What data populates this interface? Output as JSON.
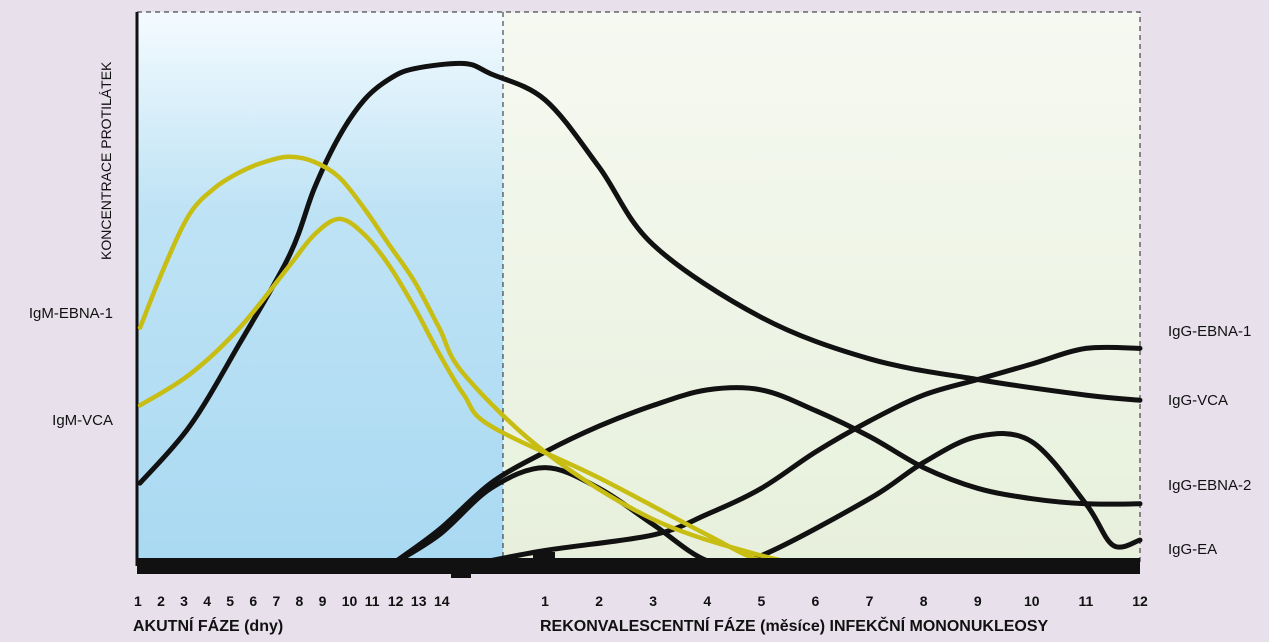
{
  "chart_data": {
    "type": "line",
    "ylabel": "KONCENTRACE PROTILÁTEK",
    "phases": [
      {
        "name": "AKUTNÍ FÁZE (dny)",
        "ticks": [
          "1",
          "2",
          "3",
          "4",
          "5",
          "6",
          "7",
          "8",
          "9",
          "10",
          "11",
          "12",
          "13",
          "14"
        ],
        "color": "#bfe3f5"
      },
      {
        "name": "REKONVALESCENTNÍ FÁZE (měsíce) INFEKČNÍ MONONUKLEOSY",
        "ticks": [
          "1",
          "2",
          "3",
          "4",
          "5",
          "6",
          "7",
          "8",
          "9",
          "10",
          "11",
          "12"
        ],
        "color": "#e7f0dc"
      }
    ],
    "grid": false,
    "series": [
      {
        "name": "IgM-EBNA-1",
        "label_side": "left",
        "color": "#c8bd12",
        "peak_day": 7,
        "points": [
          [
            1,
            0.46
          ],
          [
            2,
            0.58
          ],
          [
            3,
            0.68
          ],
          [
            4,
            0.73
          ],
          [
            5,
            0.76
          ],
          [
            6,
            0.78
          ],
          [
            7,
            0.79
          ],
          [
            8,
            0.78
          ],
          [
            9,
            0.75
          ],
          [
            10,
            0.69
          ],
          [
            11,
            0.62
          ],
          [
            12,
            0.55
          ],
          [
            13,
            0.46
          ],
          [
            14,
            0.37
          ],
          [
            16,
            0.22
          ],
          [
            18,
            0.09
          ],
          [
            20,
            0.02
          ],
          [
            21,
            0.0
          ]
        ]
      },
      {
        "name": "IgM-VCA",
        "label_side": "left",
        "color": "#c8bd12",
        "peak_day": 9,
        "points": [
          [
            1,
            0.31
          ],
          [
            3,
            0.37
          ],
          [
            5,
            0.46
          ],
          [
            7,
            0.58
          ],
          [
            8,
            0.64
          ],
          [
            9,
            0.67
          ],
          [
            10,
            0.64
          ],
          [
            11,
            0.58
          ],
          [
            12,
            0.5
          ],
          [
            13,
            0.41
          ],
          [
            14,
            0.33
          ],
          [
            15,
            0.27
          ],
          [
            17,
            0.17
          ],
          [
            19,
            0.06
          ],
          [
            20,
            0.01
          ],
          [
            21,
            0.0
          ]
        ]
      },
      {
        "name": "IgG-VCA",
        "label_side": "right",
        "color": "#111111",
        "points": [
          [
            1,
            0.16
          ],
          [
            3,
            0.27
          ],
          [
            5,
            0.43
          ],
          [
            7,
            0.6
          ],
          [
            8,
            0.73
          ],
          [
            9,
            0.83
          ],
          [
            10,
            0.9
          ],
          [
            11,
            0.94
          ],
          [
            12,
            0.96
          ],
          [
            14,
            0.97
          ],
          [
            15,
            0.95
          ],
          [
            16,
            0.9
          ],
          [
            17,
            0.77
          ],
          [
            18,
            0.62
          ],
          [
            20,
            0.48
          ],
          [
            22,
            0.4
          ],
          [
            24,
            0.36
          ],
          [
            26,
            0.33
          ],
          [
            27,
            0.32
          ]
        ]
      },
      {
        "name": "IgG-EBNA-2",
        "label_side": "right",
        "color": "#111111",
        "points": [
          [
            11,
            0.0
          ],
          [
            13,
            0.07
          ],
          [
            15,
            0.16
          ],
          [
            16,
            0.22
          ],
          [
            17,
            0.27
          ],
          [
            18,
            0.31
          ],
          [
            19,
            0.34
          ],
          [
            20,
            0.34
          ],
          [
            21,
            0.3
          ],
          [
            22,
            0.25
          ],
          [
            23,
            0.19
          ],
          [
            24,
            0.15
          ],
          [
            25,
            0.13
          ],
          [
            26,
            0.12
          ],
          [
            27,
            0.12
          ]
        ]
      },
      {
        "name": "IgG-EBNA-1",
        "label_side": "right",
        "color": "#111111",
        "points": [
          [
            14,
            0.0
          ],
          [
            16,
            0.03
          ],
          [
            18,
            0.06
          ],
          [
            19,
            0.1
          ],
          [
            20,
            0.15
          ],
          [
            21,
            0.22
          ],
          [
            22,
            0.28
          ],
          [
            23,
            0.33
          ],
          [
            24,
            0.36
          ],
          [
            25,
            0.39
          ],
          [
            26,
            0.42
          ],
          [
            27,
            0.42
          ]
        ]
      },
      {
        "name": "IgG-EA",
        "label_side": "right",
        "color": "#111111",
        "points": [
          [
            11,
            0.0
          ],
          [
            13,
            0.06
          ],
          [
            15,
            0.15
          ],
          [
            16,
            0.19
          ],
          [
            17,
            0.15
          ],
          [
            18,
            0.08
          ],
          [
            19,
            0.01
          ],
          [
            20,
            0.0
          ]
        ]
      },
      {
        "name": "IgG-EA-late",
        "label_side": "none",
        "color": "#111111",
        "points": [
          [
            19,
            0.0
          ],
          [
            20,
            0.02
          ],
          [
            22,
            0.13
          ],
          [
            23,
            0.2
          ],
          [
            24,
            0.25
          ],
          [
            25,
            0.24
          ],
          [
            26,
            0.12
          ],
          [
            26.5,
            0.04
          ],
          [
            27,
            0.05
          ]
        ]
      }
    ]
  }
}
